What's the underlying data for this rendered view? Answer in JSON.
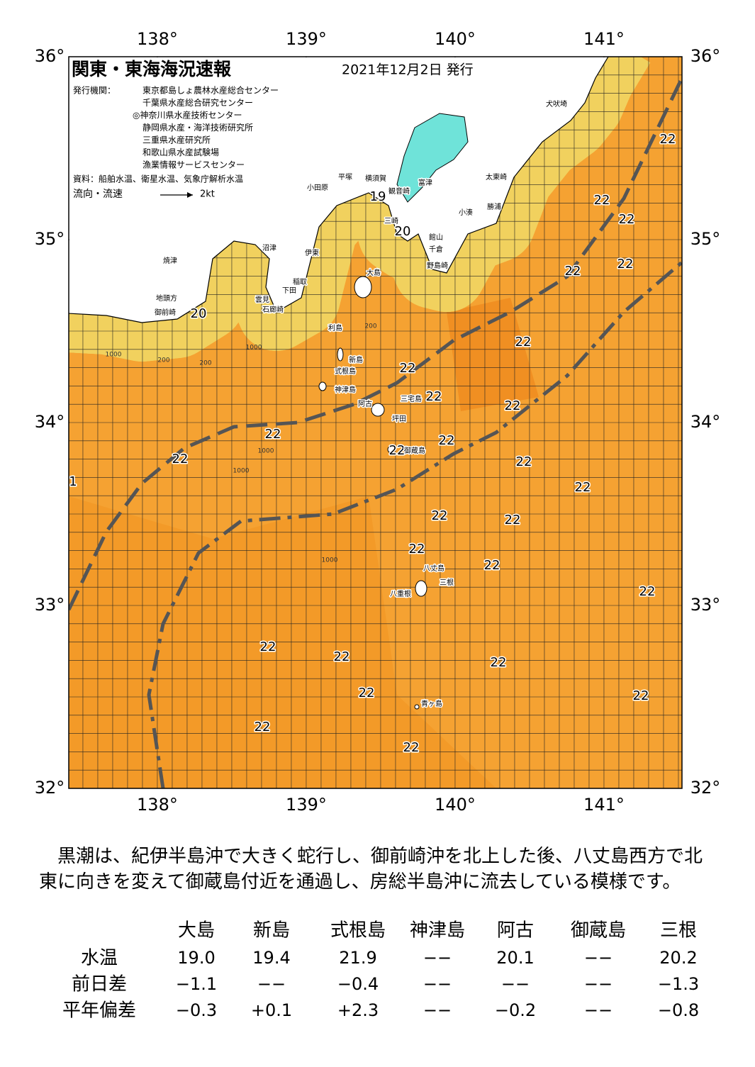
{
  "map": {
    "title": "関東・東海海況速報",
    "date": "2021年12月2日 発行",
    "issuers_label": "発行機関：",
    "issuers": [
      "東京都島しょ農林水産総合センター",
      "千葉県水産総合研究センター",
      "◎神奈川県水産技術センター",
      "静岡県水産・海洋技術研究所",
      "三重県水産研究所",
      "和歌山県水産試験場",
      "漁業情報サービスセンター"
    ],
    "source": "資料：船舶水温、衛星水温、気象庁解析水温",
    "legend_label": "流向・流速",
    "legend_speed": "2kt",
    "lonlim": [
      137.405,
      141.524
    ],
    "latlim": [
      32,
      36
    ],
    "lon_ticks": [
      {
        "value": 138,
        "label": "138°"
      },
      {
        "value": 139,
        "label": "139°"
      },
      {
        "value": 140,
        "label": "140°"
      },
      {
        "value": 141,
        "label": "141°"
      }
    ],
    "lat_ticks": [
      {
        "value": 32,
        "label": "32°"
      },
      {
        "value": 33,
        "label": "33°"
      },
      {
        "value": 34,
        "label": "34°"
      },
      {
        "value": 35,
        "label": "35°"
      },
      {
        "value": 36,
        "label": "36°"
      }
    ],
    "temperature_labels": [
      22,
      22,
      22,
      22,
      22,
      22,
      22,
      22,
      22,
      22,
      22,
      22,
      22,
      22,
      22,
      22,
      22,
      22,
      22,
      22,
      22,
      22,
      22,
      22,
      22,
      22,
      22,
      20,
      19,
      20,
      1
    ],
    "place_names": [
      "犬吠埼",
      "太東崎",
      "勝浦",
      "小湊",
      "館山",
      "千倉",
      "野島崎",
      "富津",
      "横須賀",
      "観音崎",
      "平塚",
      "小田原",
      "三崎",
      "伊東",
      "沼津",
      "焼津",
      "地頭方",
      "御前崎",
      "稲取",
      "下田",
      "雲見",
      "石廊崎",
      "大島",
      "利島",
      "新島",
      "式根島",
      "神津島",
      "阿古",
      "三宅島",
      "坪田",
      "御蔵島",
      "八丈島",
      "三根",
      "八重根",
      "青ヶ島"
    ],
    "contour_labels": [
      "200",
      "1000",
      "200",
      "1000",
      "1000",
      "1000",
      "200",
      "1000"
    ]
  },
  "summary": "黒潮は、紀伊半島沖で大きく蛇行し、御前崎沖を北上した後、八丈島西方で北東に向きを変えて御蔵島付近を通過し、房総半島沖に流去している模様です。",
  "table": {
    "columns": [
      "大島",
      "新島",
      "式根島",
      "神津島",
      "阿古",
      "御蔵島",
      "三根"
    ],
    "rows": [
      {
        "label": "水温",
        "cells": [
          "19.0",
          "19.4",
          "21.9",
          "−−",
          "20.1",
          "−−",
          "20.2"
        ]
      },
      {
        "label": "前日差",
        "cells": [
          "−1.1",
          "−−",
          "−0.4",
          "−−",
          "−−",
          "−−",
          "−1.3"
        ]
      },
      {
        "label": "平年偏差",
        "cells": [
          "−0.3",
          "+0.1",
          "+2.3",
          "−−",
          "−0.2",
          "−−",
          "−0.8"
        ]
      }
    ]
  }
}
